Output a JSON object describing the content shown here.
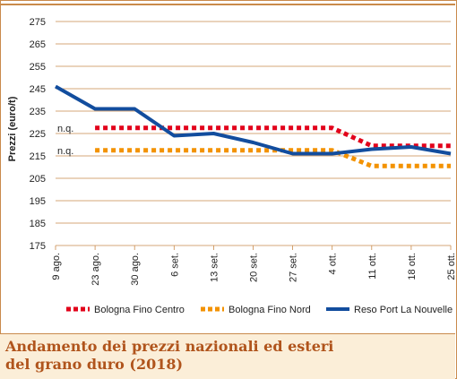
{
  "caption": {
    "line1": "Andamento dei prezzi nazionali ed esteri",
    "line2": "del grano duro (2018)"
  },
  "chart_data": {
    "type": "line",
    "title": "Andamento dei prezzi nazionali ed esteri del grano duro (2018)",
    "xlabel": "",
    "ylabel": "Prezzi (euro/t)",
    "ylim": [
      175,
      275
    ],
    "yticks": [
      175,
      185,
      195,
      205,
      215,
      225,
      235,
      245,
      255,
      265,
      275
    ],
    "categories": [
      "9 ago.",
      "23 ago.",
      "30 ago.",
      "6 set.",
      "13 set.",
      "20 set.",
      "27 set.",
      "4 ott.",
      "11 ott.",
      "18 ott.",
      "25 ott."
    ],
    "grid": "horizontal",
    "legend": "bottom",
    "annotations": [
      "n.q.",
      "n.q."
    ],
    "series": [
      {
        "name": "Bologna Fino Centro",
        "color": "#e2001a",
        "style": "dotted",
        "values": [
          null,
          227.5,
          227.5,
          227.5,
          227.5,
          227.5,
          227.5,
          227.5,
          219.5,
          219.5,
          219.5
        ]
      },
      {
        "name": "Bologna Fino Nord",
        "color": "#f39200",
        "style": "dotted",
        "values": [
          null,
          217.5,
          217.5,
          217.5,
          217.5,
          217.5,
          217.5,
          217.5,
          210.5,
          210.5,
          210.5
        ]
      },
      {
        "name": "Reso Port La Nouvelle",
        "color": "#124d9e",
        "style": "solid",
        "values": [
          246,
          236,
          236,
          224,
          225,
          221,
          216,
          216,
          218,
          219,
          216
        ]
      }
    ]
  }
}
